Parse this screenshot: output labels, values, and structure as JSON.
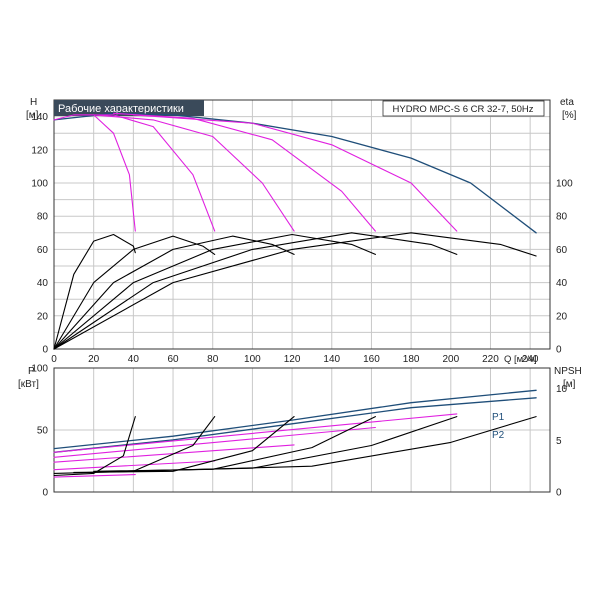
{
  "top": {
    "title": "Рабочие характеристики",
    "model": "HYDRO MPC-S 6 CR 32-7, 50Hz",
    "y_left_label": "H",
    "y_left_unit": "[м]",
    "y_right_label": "eta",
    "y_right_unit": "[%]",
    "x_label": "Q [м³/ч]"
  },
  "bottom": {
    "y_left_label": "P",
    "y_left_unit": "[кВт]",
    "y_right_label": "NPSH",
    "y_right_unit": "[м]",
    "series_p1": "P1",
    "series_p2": "P2"
  },
  "colors": {
    "blue_curve": "#1f4e79",
    "magenta": "#e020e0",
    "black": "#000000",
    "title_bg": "#3a4a5a",
    "grid": "#c8c8c8"
  },
  "chart_data": [
    {
      "type": "line",
      "title": "Рабочие характеристики",
      "x_axis": {
        "label": "Q [м³/ч]",
        "range": [
          0,
          250
        ],
        "ticks": [
          0,
          20,
          40,
          60,
          80,
          100,
          120,
          140,
          160,
          180,
          200,
          220,
          240
        ]
      },
      "y_axis_left": {
        "label": "H [м]",
        "range": [
          0,
          150
        ],
        "ticks": [
          0,
          20,
          40,
          60,
          80,
          100,
          120,
          140
        ]
      },
      "y_axis_right": {
        "label": "eta [%]",
        "range": [
          0,
          150
        ],
        "ticks": [
          0,
          20,
          40,
          60,
          80,
          100
        ]
      },
      "grid": true,
      "series": [
        {
          "name": "",
          "color": "blue",
          "axis": "left",
          "points": [
            [
              0,
              138
            ],
            [
              30,
              142
            ],
            [
              60,
              141
            ],
            [
              100,
              136
            ],
            [
              140,
              128
            ],
            [
              180,
              115
            ],
            [
              210,
              100
            ],
            [
              243,
              70
            ]
          ]
        },
        {
          "name": "",
          "color": "magenta",
          "axis": "left",
          "points": [
            [
              0,
              138
            ],
            [
              10,
              141
            ],
            [
              20,
              141
            ],
            [
              30,
              130
            ],
            [
              38,
              105
            ],
            [
              41,
              71
            ]
          ]
        },
        {
          "name": "",
          "color": "magenta",
          "axis": "left",
          "points": [
            [
              10,
              141
            ],
            [
              30,
              141
            ],
            [
              50,
              134
            ],
            [
              70,
              105
            ],
            [
              81,
              71
            ]
          ]
        },
        {
          "name": "",
          "color": "magenta",
          "axis": "left",
          "points": [
            [
              20,
              141
            ],
            [
              50,
              138
            ],
            [
              80,
              128
            ],
            [
              105,
              100
            ],
            [
              121,
              71
            ]
          ]
        },
        {
          "name": "",
          "color": "magenta",
          "axis": "left",
          "points": [
            [
              30,
              142
            ],
            [
              70,
              139
            ],
            [
              110,
              126
            ],
            [
              145,
              95
            ],
            [
              162,
              71
            ]
          ]
        },
        {
          "name": "",
          "color": "magenta",
          "axis": "left",
          "points": [
            [
              40,
              141
            ],
            [
              100,
              136
            ],
            [
              140,
              123
            ],
            [
              180,
              100
            ],
            [
              203,
              71
            ]
          ]
        },
        {
          "name": "",
          "color": "black",
          "axis": "right",
          "points": [
            [
              0,
              0
            ],
            [
              10,
              45
            ],
            [
              20,
              65
            ],
            [
              30,
              69
            ],
            [
              40,
              62
            ],
            [
              41,
              58
            ]
          ]
        },
        {
          "name": "",
          "color": "black",
          "axis": "right",
          "points": [
            [
              0,
              0
            ],
            [
              20,
              40
            ],
            [
              40,
              60
            ],
            [
              60,
              68
            ],
            [
              75,
              62
            ],
            [
              81,
              57
            ]
          ]
        },
        {
          "name": "",
          "color": "black",
          "axis": "right",
          "points": [
            [
              0,
              0
            ],
            [
              30,
              40
            ],
            [
              60,
              60
            ],
            [
              90,
              68
            ],
            [
              110,
              63
            ],
            [
              121,
              57
            ]
          ]
        },
        {
          "name": "",
          "color": "black",
          "axis": "right",
          "points": [
            [
              0,
              0
            ],
            [
              40,
              40
            ],
            [
              80,
              60
            ],
            [
              120,
              69
            ],
            [
              150,
              63
            ],
            [
              162,
              57
            ]
          ]
        },
        {
          "name": "",
          "color": "black",
          "axis": "right",
          "points": [
            [
              0,
              0
            ],
            [
              50,
              40
            ],
            [
              100,
              60
            ],
            [
              150,
              70
            ],
            [
              190,
              63
            ],
            [
              203,
              57
            ]
          ]
        },
        {
          "name": "",
          "color": "black",
          "axis": "right",
          "points": [
            [
              0,
              0
            ],
            [
              60,
              40
            ],
            [
              120,
              60
            ],
            [
              180,
              70
            ],
            [
              225,
              63
            ],
            [
              243,
              56
            ]
          ]
        }
      ]
    },
    {
      "type": "line",
      "x_axis": {
        "range": [
          0,
          250
        ],
        "ticks": []
      },
      "y_axis_left": {
        "label": "P [кВт]",
        "range": [
          0,
          100
        ],
        "ticks": [
          0,
          50,
          100
        ]
      },
      "y_axis_right": {
        "label": "NPSH [м]",
        "range": [
          0,
          12
        ],
        "ticks": [
          0,
          5,
          10
        ]
      },
      "grid": true,
      "series": [
        {
          "name": "P1",
          "color": "blue",
          "axis": "left",
          "points": [
            [
              0,
              35
            ],
            [
              60,
              45
            ],
            [
              120,
              58
            ],
            [
              180,
              72
            ],
            [
              243,
              82
            ]
          ]
        },
        {
          "name": "P2",
          "color": "blue",
          "axis": "left",
          "points": [
            [
              0,
              32
            ],
            [
              60,
              42
            ],
            [
              120,
              55
            ],
            [
              180,
              68
            ],
            [
              243,
              76
            ]
          ]
        },
        {
          "name": "",
          "color": "magenta",
          "axis": "left",
          "points": [
            [
              0,
              12
            ],
            [
              41,
              14
            ]
          ]
        },
        {
          "name": "",
          "color": "magenta",
          "axis": "left",
          "points": [
            [
              0,
              18
            ],
            [
              81,
              25
            ]
          ]
        },
        {
          "name": "",
          "color": "magenta",
          "axis": "left",
          "points": [
            [
              0,
              24
            ],
            [
              121,
              38
            ]
          ]
        },
        {
          "name": "",
          "color": "magenta",
          "axis": "left",
          "points": [
            [
              0,
              28
            ],
            [
              162,
              52
            ]
          ]
        },
        {
          "name": "",
          "color": "magenta",
          "axis": "left",
          "points": [
            [
              0,
              32
            ],
            [
              203,
              63
            ]
          ]
        },
        {
          "name": "",
          "color": "black",
          "axis": "right",
          "points": [
            [
              0,
              1.6
            ],
            [
              20,
              1.8
            ],
            [
              35,
              3.5
            ],
            [
              41,
              7.3
            ]
          ]
        },
        {
          "name": "",
          "color": "black",
          "axis": "right",
          "points": [
            [
              0,
              1.8
            ],
            [
              40,
              2.0
            ],
            [
              70,
              4.5
            ],
            [
              81,
              7.3
            ]
          ]
        },
        {
          "name": "",
          "color": "black",
          "axis": "right",
          "points": [
            [
              10,
              1.9
            ],
            [
              60,
              2.0
            ],
            [
              100,
              4.0
            ],
            [
              121,
              7.3
            ]
          ]
        },
        {
          "name": "",
          "color": "black",
          "axis": "right",
          "points": [
            [
              20,
              2.0
            ],
            [
              80,
              2.2
            ],
            [
              130,
              4.3
            ],
            [
              162,
              7.3
            ]
          ]
        },
        {
          "name": "",
          "color": "black",
          "axis": "right",
          "points": [
            [
              30,
              2.0
            ],
            [
              100,
              2.3
            ],
            [
              160,
              4.5
            ],
            [
              203,
              7.3
            ]
          ]
        },
        {
          "name": "",
          "color": "black",
          "axis": "right",
          "points": [
            [
              40,
              2.0
            ],
            [
              130,
              2.5
            ],
            [
              200,
              4.8
            ],
            [
              243,
              7.3
            ]
          ]
        }
      ]
    }
  ]
}
